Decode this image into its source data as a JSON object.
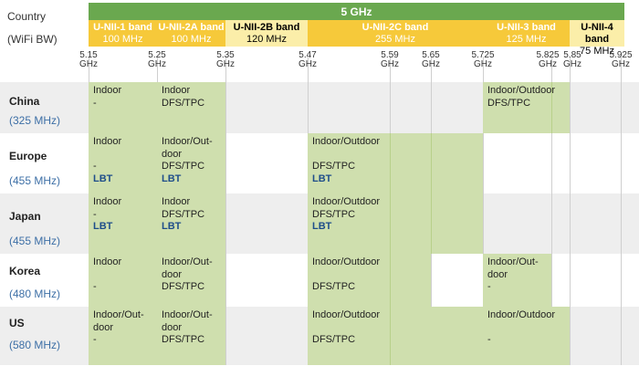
{
  "header": {
    "country_line1": "Country",
    "country_line2": "(WiFi BW)",
    "top_label": "5 GHz"
  },
  "bands": [
    {
      "name": "U-NII-1 band",
      "bw": "100 MHz"
    },
    {
      "name": "U-NII-2A band",
      "bw": "100 MHz"
    },
    {
      "name": "U-NII-2B band",
      "bw": "120 MHz"
    },
    {
      "name": "U-NII-2C band",
      "bw": "255 MHz"
    },
    {
      "name": "U-NII-3 band",
      "bw": "125 MHz"
    },
    {
      "name": "U-NII-4 band",
      "bw": "75 MHz"
    }
  ],
  "freq_unit": "GHz",
  "freqs": [
    "5.15",
    "5.25",
    "5.35",
    "5.47",
    "5.59",
    "5.65",
    "5.725",
    "5.825",
    "5.85",
    "5.925"
  ],
  "rows": [
    {
      "country": "China",
      "bw": "(325 MHz)",
      "cells": [
        {
          "lines": [
            "Indoor",
            "-"
          ]
        },
        {
          "lines": [
            "Indoor",
            "DFS/TPC"
          ]
        },
        {
          "lines": [
            "Indoor/Outdoor",
            "DFS/TPC"
          ]
        }
      ]
    },
    {
      "country": "Europe",
      "bw": "(455 MHz)",
      "cells": [
        {
          "lines": [
            "Indoor",
            "",
            "-"
          ],
          "lbt": "LBT"
        },
        {
          "lines": [
            "Indoor/Out-",
            "door",
            "DFS/TPC"
          ],
          "lbt": "LBT"
        },
        {
          "lines": [
            "Indoor/Outdoor",
            "",
            "DFS/TPC"
          ],
          "lbt": "LBT"
        }
      ]
    },
    {
      "country": "Japan",
      "bw": "(455 MHz)",
      "cells": [
        {
          "lines": [
            "Indoor",
            "-"
          ],
          "lbt": "LBT"
        },
        {
          "lines": [
            "Indoor",
            "DFS/TPC"
          ],
          "lbt": "LBT"
        },
        {
          "lines": [
            "Indoor/Outdoor",
            "DFS/TPC"
          ],
          "lbt": "LBT"
        }
      ]
    },
    {
      "country": "Korea",
      "bw": "(480 MHz)",
      "cells": [
        {
          "lines": [
            "Indoor",
            "",
            "-"
          ]
        },
        {
          "lines": [
            "Indoor/Out-",
            "door",
            "DFS/TPC"
          ]
        },
        {
          "lines": [
            "Indoor/Outdoor",
            "",
            "DFS/TPC"
          ]
        },
        {
          "lines": [
            "Indoor/Out-",
            "door",
            "-"
          ]
        }
      ]
    },
    {
      "country": "US",
      "bw": "(580 MHz)",
      "cells": [
        {
          "lines": [
            "Indoor/Out-",
            "door",
            "-"
          ]
        },
        {
          "lines": [
            "Indoor/Out-",
            "door",
            "DFS/TPC"
          ]
        },
        {
          "lines": [
            "Indoor/Outdoor",
            "",
            "DFS/TPC"
          ]
        },
        {
          "lines": [
            "Indoor/Outdoor",
            "",
            "-"
          ]
        }
      ]
    }
  ],
  "colors": {
    "ghz_bar": "#6aa84f",
    "band_gold": "#f6c93a",
    "band_pale": "#fbeea9",
    "allowed_cell": "#cfdfae",
    "bw_text": "#3d6fa6",
    "lbt_text": "#1f4e8a"
  }
}
